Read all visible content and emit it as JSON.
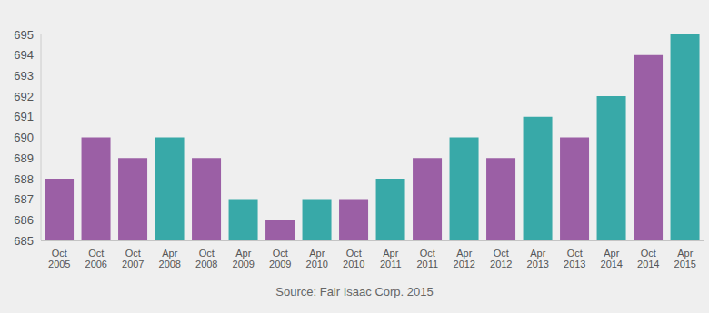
{
  "chart_data": {
    "type": "bar",
    "source": "Source: Fair Isaac Corp. 2015",
    "categories": [
      "Oct 2005",
      "Oct 2006",
      "Oct 2007",
      "Apr 2008",
      "Oct 2008",
      "Apr 2009",
      "Oct 2009",
      "Apr 2010",
      "Oct 2010",
      "Apr 2011",
      "Oct 2011",
      "Apr 2012",
      "Oct 2012",
      "Apr 2013",
      "Oct 2013",
      "Apr 2014",
      "Oct 2014",
      "Apr 2015"
    ],
    "values": [
      688,
      690,
      689,
      690,
      689,
      687,
      686,
      687,
      687,
      688,
      689,
      690,
      689,
      691,
      690,
      692,
      694,
      695
    ],
    "colors": [
      "#9b5fa5",
      "#9b5fa5",
      "#9b5fa5",
      "#38a9a8",
      "#9b5fa5",
      "#38a9a8",
      "#9b5fa5",
      "#38a9a8",
      "#9b5fa5",
      "#38a9a8",
      "#9b5fa5",
      "#38a9a8",
      "#9b5fa5",
      "#38a9a8",
      "#9b5fa5",
      "#38a9a8",
      "#9b5fa5",
      "#38a9a8"
    ],
    "ylim": [
      685,
      695
    ],
    "yticks": [
      685,
      686,
      687,
      688,
      689,
      690,
      691,
      692,
      693,
      694,
      695
    ],
    "grid": false
  }
}
